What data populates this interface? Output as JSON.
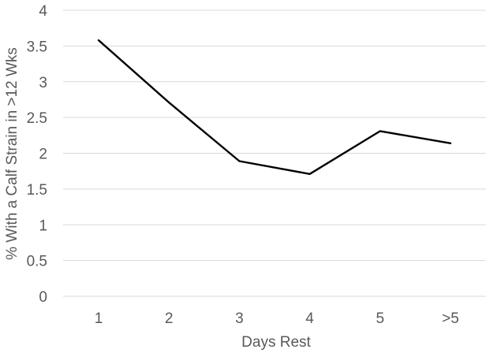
{
  "chart_data": {
    "type": "line",
    "categories": [
      "1",
      "2",
      "3",
      "4",
      "5",
      ">5"
    ],
    "series": [
      {
        "values": [
          3.58,
          2.71,
          1.89,
          1.71,
          2.31,
          2.14
        ]
      }
    ],
    "title": "",
    "xlabel": "Days Rest",
    "ylabel": "% With a Calf Strain in >12 Wks",
    "ylim": [
      0,
      4
    ],
    "yticks": [
      "0",
      "0.5",
      "1",
      "1.5",
      "2",
      "2.5",
      "3",
      "3.5",
      "4"
    ],
    "grid": true,
    "legend": "none",
    "colors": {
      "line": "#000000",
      "grid": "#d9d9d9",
      "text": "#595959"
    }
  }
}
